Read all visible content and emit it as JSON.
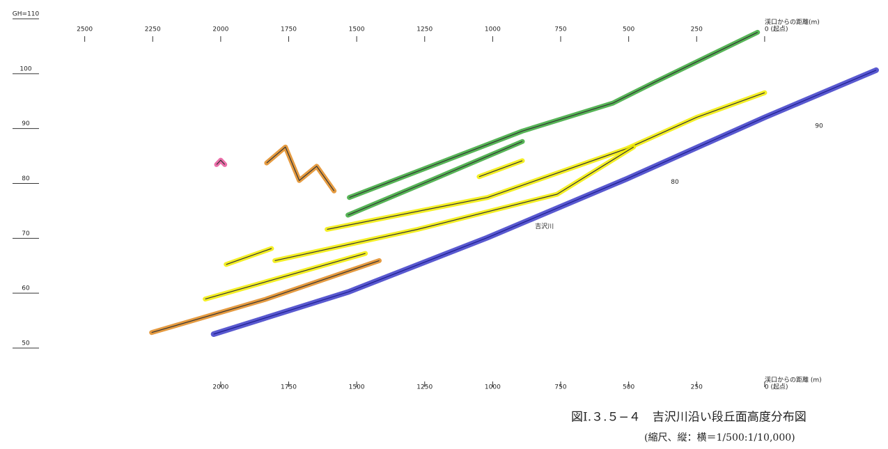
{
  "chart_data": {
    "type": "line",
    "title": "図Ⅰ.３.５−４　吉沢川沿い段丘面高度分布図",
    "subtitle": "(縮尺、縦：横＝1/500:1/10,000)",
    "x_label_top": "渓口からの距離(m)",
    "x_label": "渓口からの距離 (m)",
    "xlim": [
      2750,
      -410
    ],
    "ylim": [
      50,
      110
    ],
    "yticks": [
      {
        "value": 110,
        "label": "GH=110"
      },
      100,
      90,
      80,
      70,
      60,
      50
    ],
    "x2ticks": [
      2500,
      2250,
      2000,
      1750,
      1500,
      1250,
      1000,
      750,
      500,
      250,
      {
        "value": 0,
        "label": "0 (起点)"
      }
    ],
    "xticks": [
      2000,
      1750,
      1500,
      1250,
      1000,
      750,
      500,
      250,
      {
        "value": 0,
        "label": "0 (起点)"
      }
    ],
    "annotations": [
      {
        "text": "吉沢川",
        "x": 810,
        "y": 71.5
      },
      {
        "text": "90",
        "x": -200,
        "y": 89.8
      },
      {
        "text": "80",
        "x": 330,
        "y": 79.6
      }
    ],
    "series": [
      {
        "name": "吉沢川",
        "color": "#3c3cc8",
        "x": [
          2026,
          1530,
          1019,
          507,
          0,
          -410
        ],
        "values": [
          51.9,
          59.6,
          69.5,
          80.2,
          91.4,
          100.0
        ]
      },
      {
        "color": "#3aa83a",
        "x": [
          1527,
          891,
          558,
          405,
          26
        ],
        "values": [
          76.8,
          88.9,
          94.0,
          97.8,
          106.9
        ]
      },
      {
        "color": "#3aa83a",
        "x": [
          1532,
          1224,
          891
        ],
        "values": [
          73.6,
          80.0,
          87.0
        ]
      },
      {
        "color": "#f2ec00",
        "x": [
          1609,
          1019,
          507,
          250,
          0
        ],
        "values": [
          71.0,
          76.8,
          85.7,
          91.4,
          95.9
        ]
      },
      {
        "color": "#f2ec00",
        "x": [
          1801,
          1276,
          763,
          482
        ],
        "values": [
          65.3,
          71.0,
          77.4,
          86.0
        ]
      },
      {
        "color": "#f2ec00",
        "x": [
          2057,
          1468
        ],
        "values": [
          58.3,
          66.6
        ]
      },
      {
        "color": "#f2ec00",
        "x": [
          1980,
          1813
        ],
        "values": [
          64.6,
          67.5
        ]
      },
      {
        "color": "#f2ec00",
        "x": [
          1050,
          891
        ],
        "values": [
          80.6,
          83.5
        ]
      },
      {
        "color": "#e08a20",
        "x": [
          2254,
          1839,
          1417
        ],
        "values": [
          52.2,
          58.2,
          65.3
        ]
      },
      {
        "color": "#e08a20",
        "x": [
          1831,
          1762,
          1711,
          1647,
          1583
        ],
        "values": [
          83.1,
          86.0,
          79.9,
          82.5,
          78.0
        ]
      },
      {
        "color": "#e8559a",
        "x": [
          2015,
          2000,
          1985
        ],
        "values": [
          82.8,
          83.6,
          82.8
        ]
      }
    ]
  }
}
